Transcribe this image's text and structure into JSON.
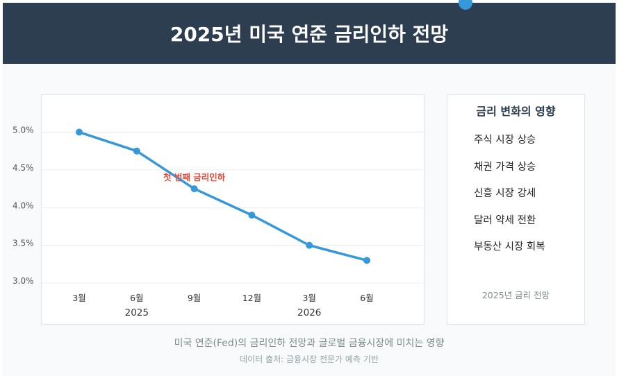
{
  "header": {
    "title": "2025년 미국 연준 금리인하 전망"
  },
  "chart_data": {
    "type": "line",
    "title": "",
    "xlabel": "",
    "ylabel": "",
    "x": [
      "3월",
      "6월",
      "9월",
      "12월",
      "3월",
      "6월"
    ],
    "years": [
      {
        "label": "2025",
        "position_index": 1
      },
      {
        "label": "2026",
        "position_index": 4
      }
    ],
    "series": [
      {
        "values": [
          5.0,
          4.75,
          4.25,
          3.9,
          3.5,
          3.3
        ]
      }
    ],
    "y_ticks": [
      {
        "value": 5.0,
        "label": "5.0%"
      },
      {
        "value": 4.5,
        "label": "4.5%"
      },
      {
        "value": 4.0,
        "label": "4.0%"
      },
      {
        "value": 3.5,
        "label": "3.5%"
      },
      {
        "value": 3.0,
        "label": "3.0%"
      }
    ],
    "ylim": [
      3.0,
      5.0
    ],
    "grid": true,
    "annotation": {
      "text": "첫 번째 금리인하",
      "point_index": 2
    },
    "colors": {
      "line": "#3498db",
      "annotation": "#e74c3c",
      "grid": "#e8ecef"
    }
  },
  "side": {
    "title": "금리 변화의 영향",
    "items": [
      "주식 시장 상승",
      "채권 가격 상승",
      "신흥 시장 강세",
      "달러 약세 전환",
      "부동산 시장 회복"
    ],
    "footer": "2025년 금리 전망"
  },
  "caption": "미국 연준(Fed)의 금리인하 전망과 글로벌 금융시장에 미치는 영향",
  "source": "데이터 출처: 금융시장 전문가 예측 기반"
}
